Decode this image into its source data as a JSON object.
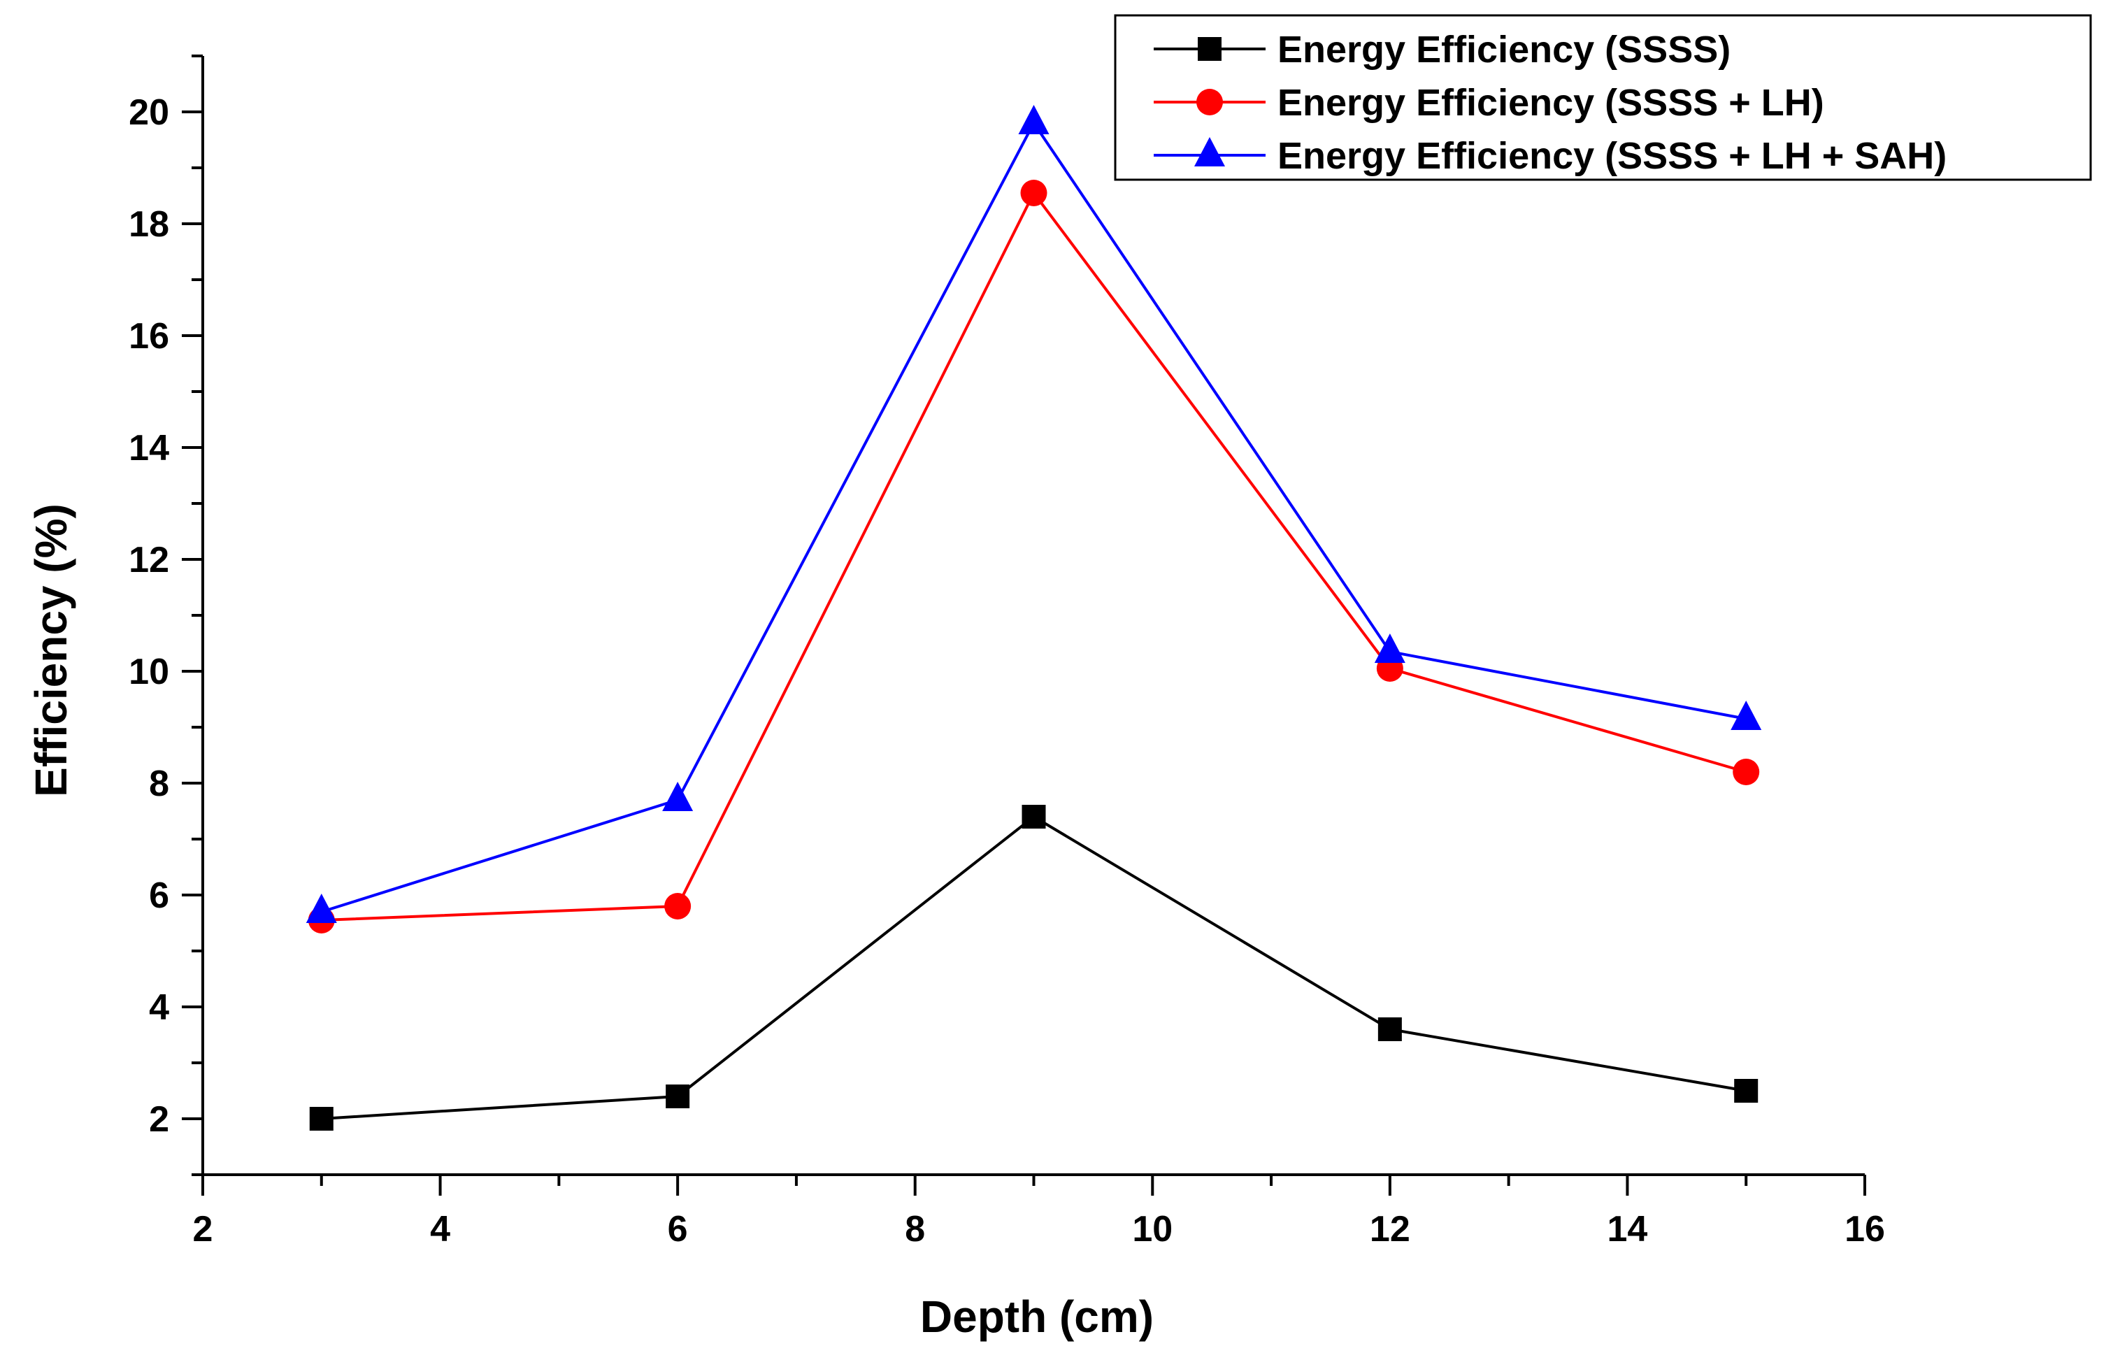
{
  "chart_data": {
    "type": "line",
    "title": "",
    "xlabel": "Depth (cm)",
    "ylabel": "Efficiency (%)",
    "xlim": [
      2,
      16
    ],
    "ylim": [
      1,
      21
    ],
    "x_ticks": [
      2,
      4,
      6,
      8,
      10,
      12,
      14,
      16
    ],
    "y_ticks": [
      2,
      4,
      6,
      8,
      10,
      12,
      14,
      16,
      18,
      20
    ],
    "x_tick_labels": [
      "2",
      "4",
      "6",
      "8",
      "10",
      "12",
      "14",
      "16"
    ],
    "y_tick_labels": [
      "2",
      "4",
      "6",
      "8",
      "10",
      "12",
      "14",
      "16",
      "18",
      "20"
    ],
    "grid": false,
    "legend_position": "top-right",
    "x": [
      3,
      6,
      9,
      12,
      15
    ],
    "series": [
      {
        "name": "Energy Efficiency (SSSS)",
        "color": "#000000",
        "marker": "square",
        "values": [
          2.0,
          2.4,
          7.4,
          3.6,
          2.5
        ]
      },
      {
        "name": "Energy Efficiency (SSSS + LH)",
        "color": "#ff0000",
        "marker": "circle",
        "values": [
          5.55,
          5.8,
          18.55,
          10.05,
          8.2
        ]
      },
      {
        "name": "Energy Efficiency (SSSS + LH + SAH)",
        "color": "#0000ff",
        "marker": "triangle",
        "values": [
          5.7,
          7.7,
          19.8,
          10.35,
          9.15
        ]
      }
    ]
  }
}
